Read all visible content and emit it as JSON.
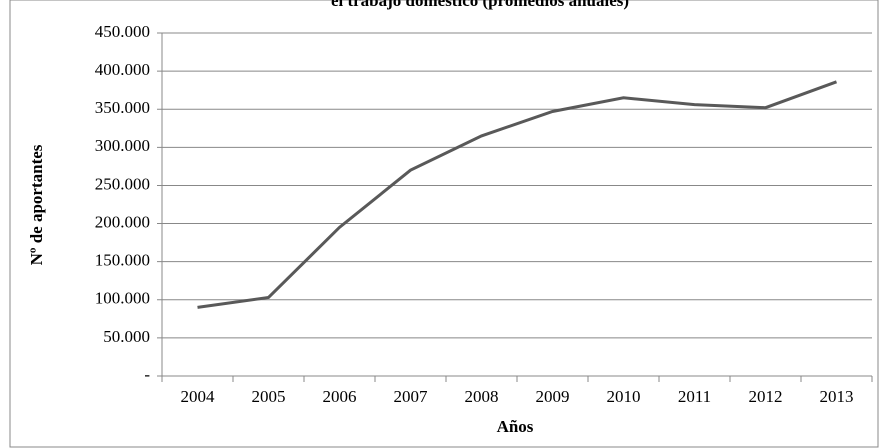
{
  "chart_data": {
    "type": "line",
    "title": "el trabajo doméstico (promedios anuales)",
    "x_label": "Años",
    "y_label": "Nº de aportantes",
    "categories": [
      "2004",
      "2005",
      "2006",
      "2007",
      "2008",
      "2009",
      "2010",
      "2011",
      "2012",
      "2013"
    ],
    "series": [
      {
        "name": "Nº de aportantes",
        "color": "#595959",
        "values": [
          90000,
          103000,
          195000,
          270000,
          315000,
          347000,
          365000,
          356000,
          352000,
          386000
        ]
      }
    ],
    "ylim": [
      0,
      450000
    ],
    "yticks": [
      {
        "value": 0,
        "label": "-"
      },
      {
        "value": 50000,
        "label": "50.000"
      },
      {
        "value": 100000,
        "label": "100.000"
      },
      {
        "value": 150000,
        "label": "150.000"
      },
      {
        "value": 200000,
        "label": "200.000"
      },
      {
        "value": 250000,
        "label": "250.000"
      },
      {
        "value": 300000,
        "label": "300.000"
      },
      {
        "value": 350000,
        "label": "350.000"
      },
      {
        "value": 400000,
        "label": "400.000"
      },
      {
        "value": 450000,
        "label": "450.000"
      }
    ],
    "grid": true
  }
}
